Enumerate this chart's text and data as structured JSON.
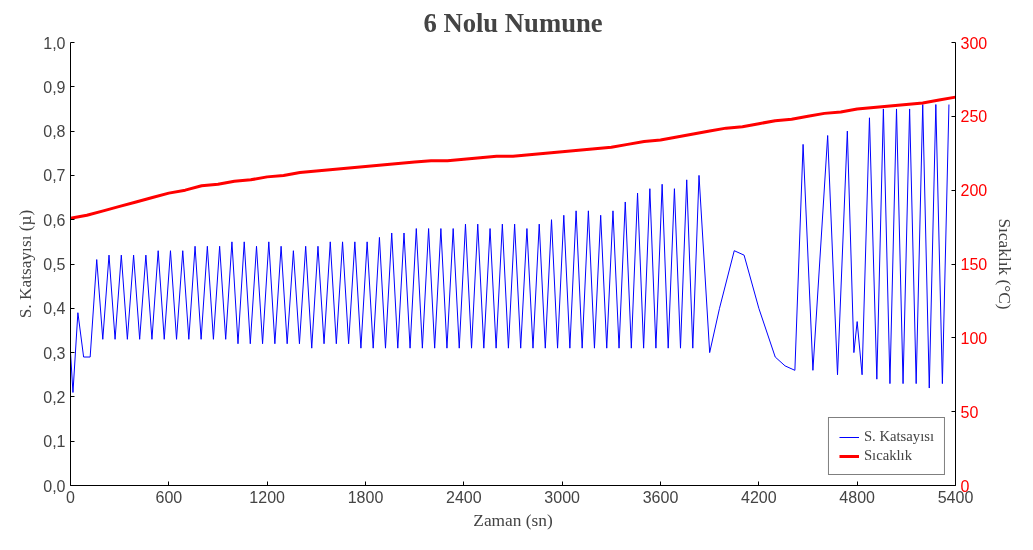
{
  "chart_data": {
    "type": "line",
    "title": "6 Nolu Numune",
    "xlabel": "Zaman (sn)",
    "ylabel": "S. Katsayısı (µ)",
    "y2label": "Sıcaklık (°C)",
    "xlim": [
      0,
      5400
    ],
    "xticks": [
      0,
      600,
      1200,
      1800,
      2400,
      3000,
      3600,
      4200,
      4800,
      5400
    ],
    "ylim": [
      0,
      1
    ],
    "yticks": [
      {
        "value": 0,
        "label": "0,0"
      },
      {
        "value": 0.1,
        "label": "0,1"
      },
      {
        "value": 0.2,
        "label": "0,2"
      },
      {
        "value": 0.3,
        "label": "0,3"
      },
      {
        "value": 0.4,
        "label": "0,4"
      },
      {
        "value": 0.5,
        "label": "0,5"
      },
      {
        "value": 0.6,
        "label": "0,6"
      },
      {
        "value": 0.7,
        "label": "0,7"
      },
      {
        "value": 0.8,
        "label": "0,8"
      },
      {
        "value": 0.9,
        "label": "0,9"
      },
      {
        "value": 1,
        "label": "1,0"
      }
    ],
    "y2lim": [
      0,
      300
    ],
    "y2ticks": [
      0,
      50,
      100,
      150,
      200,
      250,
      300
    ],
    "grid": false,
    "legend": "bottom right",
    "marker": "none",
    "line_style": "solid",
    "series": [
      {
        "name": "S. Katsayısı",
        "color": "#0000ff",
        "x": [
          0,
          15,
          45,
          80,
          120,
          160,
          197,
          235,
          272,
          310,
          347,
          385,
          422,
          460,
          497,
          535,
          572,
          610,
          647,
          685,
          722,
          760,
          797,
          835,
          872,
          910,
          947,
          985,
          1022,
          1060,
          1097,
          1135,
          1172,
          1210,
          1247,
          1285,
          1322,
          1360,
          1397,
          1435,
          1472,
          1510,
          1547,
          1585,
          1622,
          1660,
          1697,
          1735,
          1772,
          1810,
          1847,
          1885,
          1922,
          1960,
          1997,
          2035,
          2072,
          2110,
          2147,
          2185,
          2222,
          2260,
          2297,
          2335,
          2372,
          2410,
          2447,
          2485,
          2522,
          2560,
          2597,
          2635,
          2672,
          2710,
          2747,
          2785,
          2822,
          2860,
          2897,
          2935,
          2972,
          3010,
          3047,
          3085,
          3122,
          3160,
          3197,
          3235,
          3272,
          3310,
          3347,
          3385,
          3422,
          3460,
          3497,
          3535,
          3572,
          3610,
          3647,
          3685,
          3722,
          3760,
          3797,
          3835,
          3900,
          3960,
          4050,
          4110,
          4200,
          4300,
          4360,
          4420,
          4470,
          4530,
          4620,
          4680,
          4740,
          4780,
          4800,
          4830,
          4875,
          4920,
          4960,
          5000,
          5040,
          5080,
          5120,
          5160,
          5200,
          5240,
          5280,
          5320,
          5360
        ],
        "values": [
          0.3,
          0.21,
          0.39,
          0.29,
          0.29,
          0.51,
          0.33,
          0.52,
          0.33,
          0.52,
          0.33,
          0.52,
          0.33,
          0.52,
          0.33,
          0.53,
          0.33,
          0.53,
          0.33,
          0.53,
          0.33,
          0.54,
          0.33,
          0.54,
          0.33,
          0.54,
          0.33,
          0.55,
          0.32,
          0.55,
          0.32,
          0.54,
          0.32,
          0.55,
          0.32,
          0.54,
          0.32,
          0.53,
          0.32,
          0.54,
          0.31,
          0.54,
          0.32,
          0.55,
          0.32,
          0.55,
          0.32,
          0.55,
          0.31,
          0.55,
          0.31,
          0.56,
          0.31,
          0.57,
          0.31,
          0.57,
          0.31,
          0.58,
          0.31,
          0.58,
          0.31,
          0.58,
          0.31,
          0.58,
          0.31,
          0.59,
          0.31,
          0.59,
          0.31,
          0.58,
          0.31,
          0.59,
          0.31,
          0.59,
          0.31,
          0.58,
          0.31,
          0.59,
          0.31,
          0.6,
          0.31,
          0.61,
          0.31,
          0.62,
          0.31,
          0.62,
          0.31,
          0.61,
          0.31,
          0.62,
          0.31,
          0.64,
          0.31,
          0.66,
          0.31,
          0.67,
          0.31,
          0.68,
          0.31,
          0.67,
          0.31,
          0.69,
          0.31,
          0.7,
          0.3,
          0.4,
          0.53,
          0.52,
          0.4,
          0.29,
          0.27,
          0.26,
          0.77,
          0.26,
          0.79,
          0.25,
          0.8,
          0.3,
          0.37,
          0.25,
          0.83,
          0.24,
          0.85,
          0.23,
          0.85,
          0.23,
          0.85,
          0.23,
          0.86,
          0.22,
          0.86,
          0.23,
          0.86
        ]
      },
      {
        "name": "Sıcaklık",
        "color": "#ff0000",
        "axis": "y2",
        "x": [
          0,
          100,
          200,
          300,
          400,
          500,
          600,
          700,
          800,
          900,
          1000,
          1100,
          1200,
          1300,
          1400,
          1500,
          1600,
          1700,
          1800,
          1900,
          2000,
          2100,
          2200,
          2300,
          2400,
          2500,
          2600,
          2700,
          2800,
          2900,
          3000,
          3100,
          3200,
          3300,
          3400,
          3500,
          3600,
          3700,
          3800,
          3900,
          4000,
          4100,
          4200,
          4300,
          4400,
          4500,
          4600,
          4700,
          4800,
          4900,
          5000,
          5100,
          5200,
          5300,
          5400
        ],
        "values": [
          181,
          183,
          186,
          189,
          192,
          195,
          198,
          200,
          203,
          204,
          206,
          207,
          209,
          210,
          212,
          213,
          214,
          215,
          216,
          217,
          218,
          219,
          220,
          220,
          221,
          222,
          223,
          223,
          224,
          225,
          226,
          227,
          228,
          229,
          231,
          233,
          234,
          236,
          238,
          240,
          242,
          243,
          245,
          247,
          248,
          250,
          252,
          253,
          255,
          256,
          257,
          258,
          259,
          261,
          263
        ]
      }
    ]
  }
}
